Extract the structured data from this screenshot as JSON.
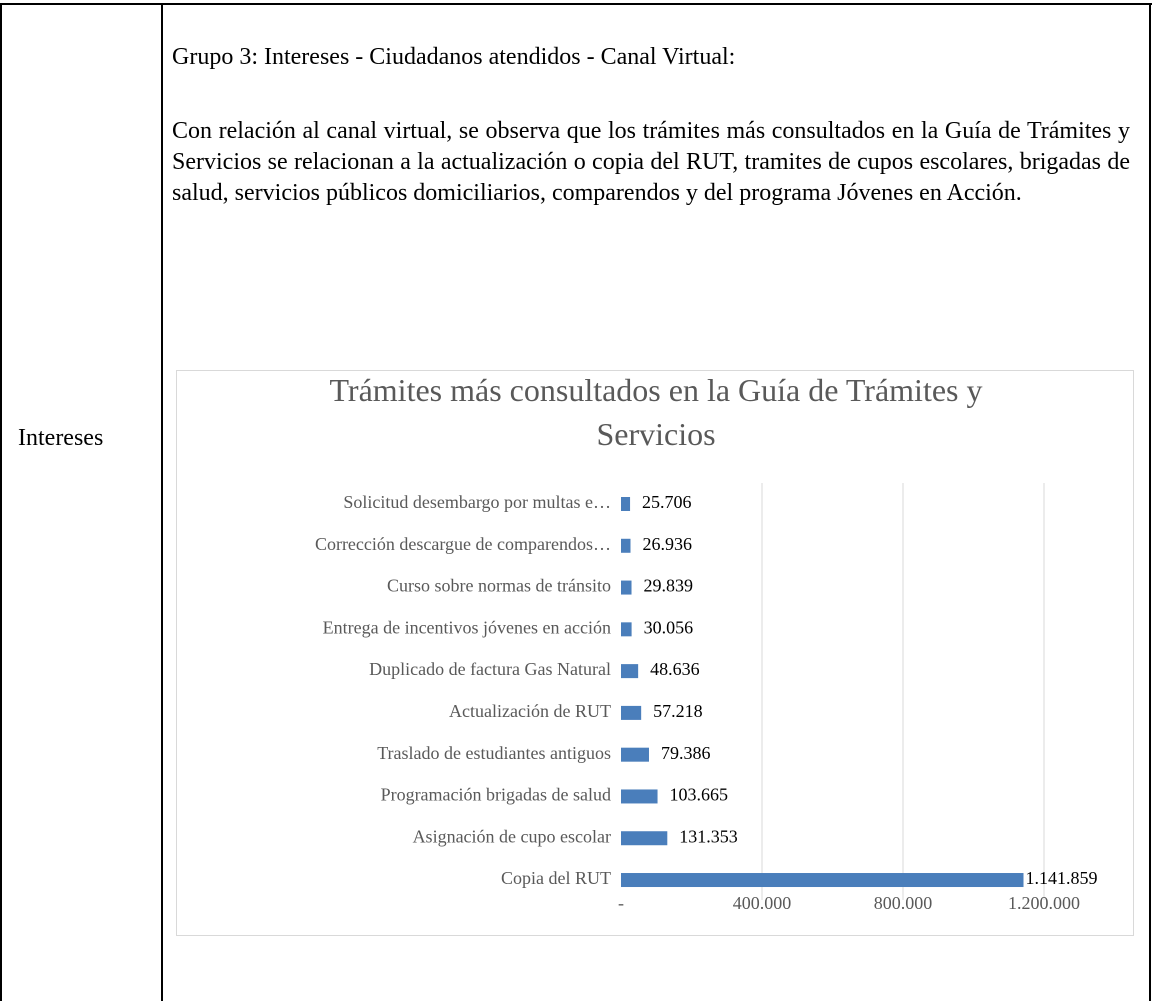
{
  "table": {
    "rows": [
      [
        "Intereses"
      ]
    ]
  },
  "content": {
    "heading": "Grupo 3: Intereses - Ciudadanos atendidos - Canal Virtual:",
    "paragraph": "Con relación al canal virtual, se observa que los trámites más consultados en la Guía de Trámites y Servicios se relacionan a la actualización o copia del RUT, tramites de cupos escolares, brigadas de salud, servicios públicos domiciliarios, comparendos y del programa Jóvenes en Acción."
  },
  "chart_data": {
    "type": "barh",
    "title": "Trámites más consultados en la Guía de Trámites y Servicios",
    "categories": [
      "Solicitud desembargo por multas e…",
      "Corrección descargue de comparendos…",
      "Curso sobre normas de tránsito",
      "Entrega de incentivos jóvenes en acción",
      "Duplicado de factura Gas Natural",
      "Actualización de RUT",
      "Traslado de estudiantes antiguos",
      "Programación brigadas de salud",
      "Asignación de cupo escolar",
      "Copia del RUT"
    ],
    "values": [
      25706,
      26936,
      29839,
      30056,
      48636,
      57218,
      79386,
      103665,
      131353,
      1141859
    ],
    "value_labels": [
      "25.706",
      "26.936",
      "29.839",
      "30.056",
      "48.636",
      "57.218",
      "79.386",
      "103.665",
      "131.353",
      "1.141.859"
    ],
    "color": "#4a7ebb",
    "xlim": [
      0,
      1200000
    ],
    "xticks": [
      {
        "value": 0,
        "label": "-"
      },
      {
        "value": 400000,
        "label": "400.000"
      },
      {
        "value": 800000,
        "label": "800.000"
      },
      {
        "value": 1200000,
        "label": "1.200.000"
      }
    ],
    "grid": true
  }
}
